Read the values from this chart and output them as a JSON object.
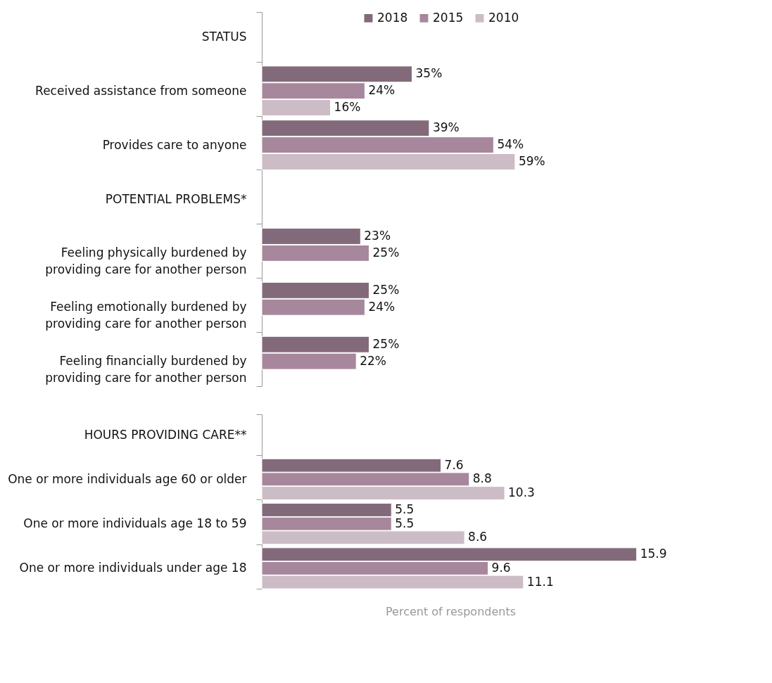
{
  "chart_data": [
    {
      "type": "bar",
      "orientation": "horizontal",
      "legend": "top right",
      "tick_labels": "y",
      "categories": [
        "STATUS",
        "Received assistance from someone",
        "Provides care to anyone",
        "POTENTIAL PROBLEMS*",
        "Feeling physically burdened by providing care for another person",
        "Feeling emotionally burdened by providing care for another person",
        "Feeling financially burdened by providing care for another person"
      ],
      "series": [
        {
          "name": "2018",
          "color": "#836a7a",
          "values": [
            null,
            35,
            39,
            null,
            23,
            25,
            25
          ],
          "value_labels": [
            null,
            "35%",
            "39%",
            null,
            "23%",
            "25%",
            "25%"
          ]
        },
        {
          "name": "2015",
          "color": "#a6879c",
          "values": [
            null,
            24,
            54,
            null,
            25,
            24,
            22
          ],
          "value_labels": [
            null,
            "24%",
            "54%",
            null,
            "25%",
            "24%",
            "22%"
          ]
        },
        {
          "name": "2010",
          "color": "#ccbcc6",
          "values": [
            null,
            16,
            59,
            null,
            null,
            null,
            null
          ],
          "value_labels": [
            null,
            "16%",
            "59%",
            null,
            null,
            null,
            null
          ]
        }
      ]
    },
    {
      "type": "bar",
      "orientation": "horizontal",
      "tick_labels": "y",
      "xlabel": "Percent of respondents",
      "categories": [
        "HOURS PROVIDING CARE**",
        "One or more individuals age 60 or older",
        "One or more individuals age 18 to 59",
        "One or more individuals under age 18"
      ],
      "series": [
        {
          "name": "2018",
          "color": "#836a7a",
          "values": [
            null,
            7.6,
            5.5,
            15.9
          ],
          "value_labels": [
            null,
            "7.6",
            "5.5",
            "15.9"
          ]
        },
        {
          "name": "2015",
          "color": "#a6879c",
          "values": [
            null,
            8.8,
            5.5,
            9.6
          ],
          "value_labels": [
            null,
            "8.8",
            "5.5",
            "9.6"
          ]
        },
        {
          "name": "2010",
          "color": "#ccbcc6",
          "values": [
            null,
            10.3,
            8.6,
            11.1
          ],
          "value_labels": [
            null,
            "10.3",
            "8.6",
            "11.1"
          ]
        }
      ]
    }
  ]
}
